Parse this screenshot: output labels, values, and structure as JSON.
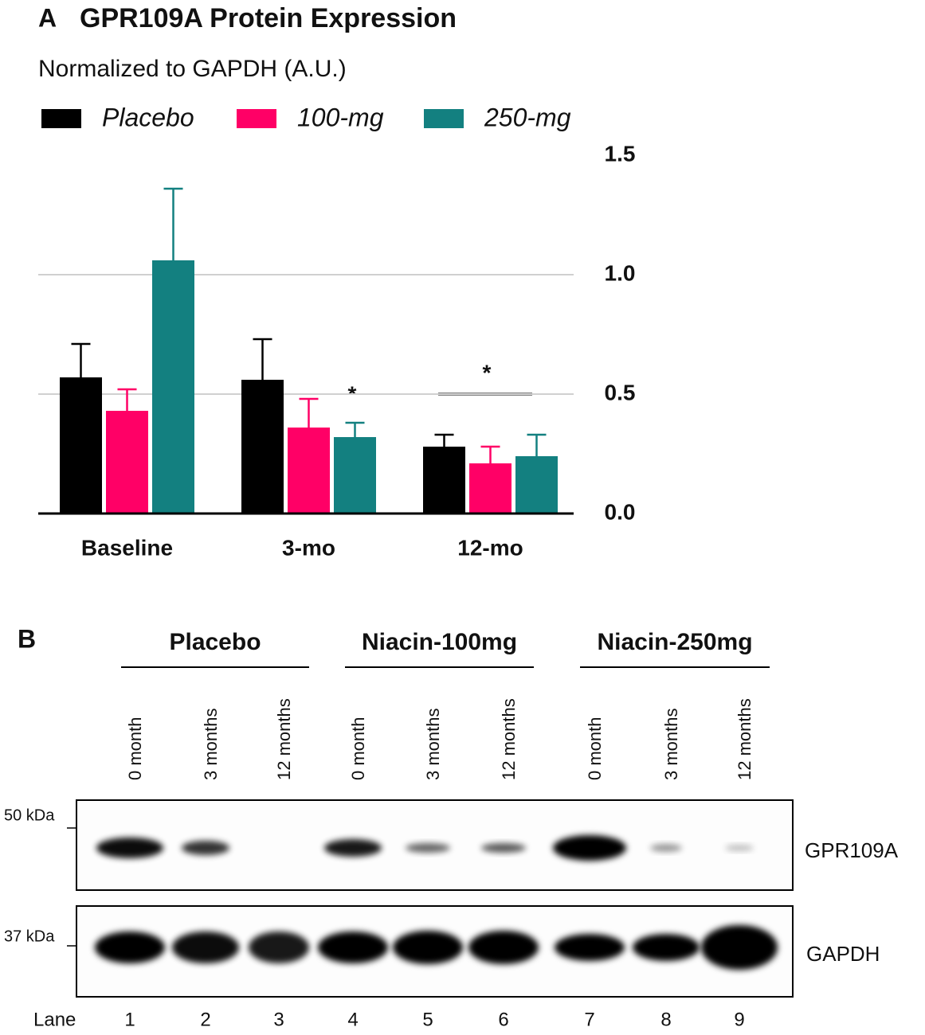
{
  "chart_data": {
    "type": "bar",
    "panel_label": "A",
    "title": "GPR109A Protein Expression",
    "subtitle": "Normalized to GAPDH (A.U.)",
    "categories": [
      "Baseline",
      "3-mo",
      "12-mo"
    ],
    "series": [
      {
        "name": "Placebo",
        "color": "#000000",
        "values": [
          0.57,
          0.56,
          0.28
        ],
        "errors": [
          0.14,
          0.17,
          0.05
        ]
      },
      {
        "name": "100-mg",
        "color": "#ff0066",
        "values": [
          0.43,
          0.36,
          0.21
        ],
        "errors": [
          0.09,
          0.12,
          0.07
        ]
      },
      {
        "name": "250-mg",
        "color": "#138080",
        "values": [
          1.06,
          0.32,
          0.24
        ],
        "errors": [
          0.3,
          0.06,
          0.09
        ]
      }
    ],
    "ylim": [
      0,
      1.5
    ],
    "yticks": [
      {
        "value": 0,
        "label": "0.0"
      },
      0.5,
      {
        "value": 1,
        "label": "1.0"
      },
      1.5
    ],
    "grid": true,
    "annotations": [
      "*",
      "*"
    ]
  },
  "blot": {
    "label": "B",
    "groups": [
      {
        "name": "Placebo",
        "lanes": [
          "0 month",
          "3 months",
          "12 months"
        ]
      },
      {
        "name": "Niacin-100mg",
        "lanes": [
          "0 month",
          "3 months",
          "12 months"
        ]
      },
      {
        "name": "Niacin-250mg",
        "lanes": [
          "0 month",
          "3 months",
          "12 months"
        ]
      }
    ],
    "markers": [
      "50 kDa",
      "37 kDa"
    ],
    "rows": [
      "GPR109A",
      "GAPDH"
    ],
    "lane_label": "Lane",
    "lane_numbers": [
      1,
      2,
      3,
      4,
      5,
      6,
      7,
      8,
      9
    ]
  }
}
